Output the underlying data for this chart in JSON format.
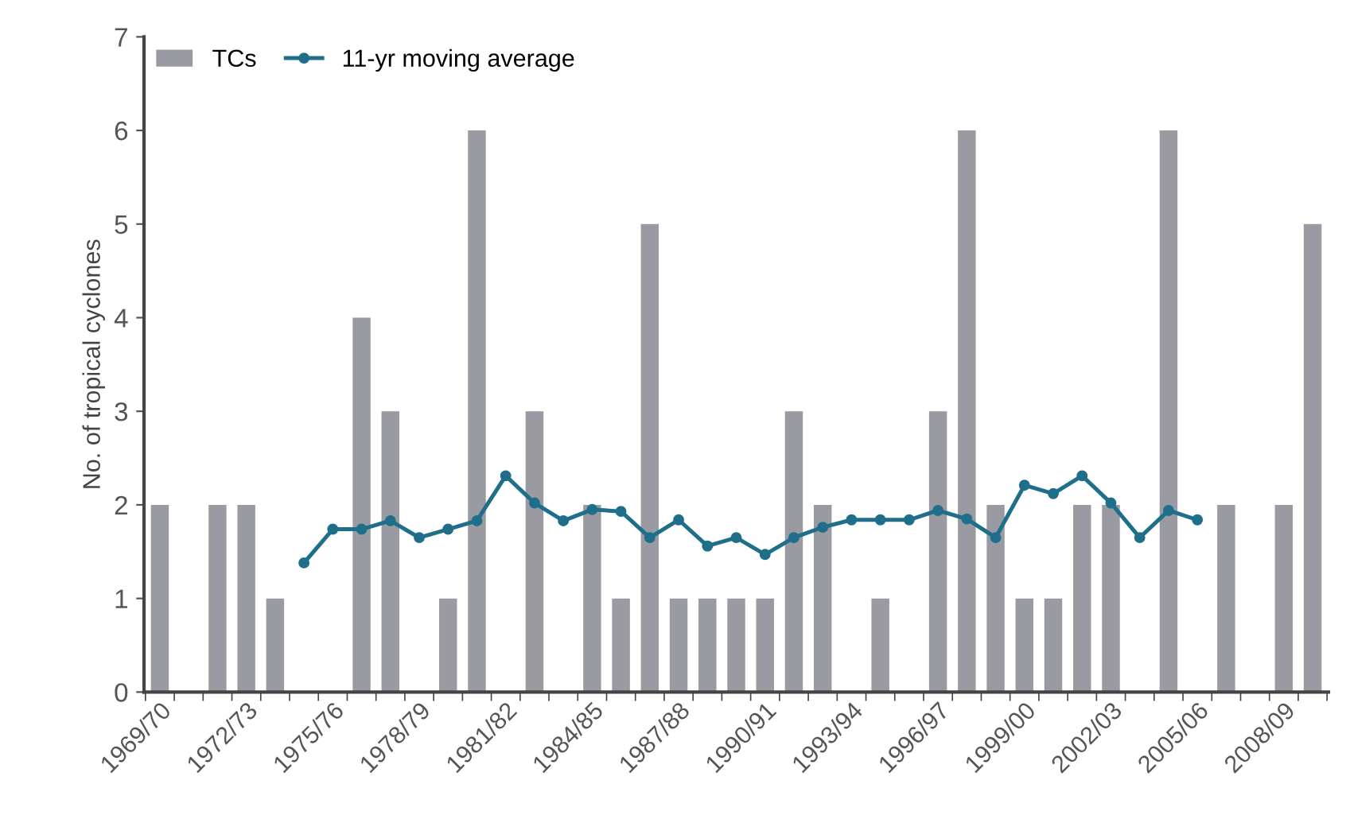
{
  "chart_data": {
    "type": "bar",
    "ylabel": "No. of tropical cyclones",
    "categories": [
      "1969/70",
      null,
      null,
      "1972/73",
      null,
      null,
      "1975/76",
      null,
      null,
      "1978/79",
      null,
      null,
      "1981/82",
      null,
      null,
      "1984/85",
      null,
      null,
      "1987/88",
      null,
      null,
      "1990/91",
      null,
      null,
      "1993/94",
      null,
      null,
      "1996/97",
      null,
      null,
      "1999/00",
      null,
      null,
      "2002/03",
      null,
      null,
      "2005/06",
      null,
      null,
      "2008/09",
      null
    ],
    "series": [
      {
        "name": "TCs",
        "color": "#9a9aa2",
        "values": [
          2,
          0,
          2,
          2,
          1,
          0,
          0,
          4,
          3,
          0,
          1,
          6,
          0,
          3,
          0,
          2,
          1,
          5,
          1,
          1,
          1,
          1,
          3,
          2,
          0,
          1,
          0,
          3,
          6,
          2,
          1,
          1,
          2,
          2,
          0,
          6,
          0,
          2,
          0,
          2,
          5
        ]
      },
      {
        "name": "11-yr moving average",
        "type": "line",
        "color": "#1f6f8b",
        "marker": "circle",
        "values": [
          null,
          null,
          null,
          null,
          null,
          1.38,
          1.74,
          1.74,
          1.83,
          1.65,
          1.74,
          1.83,
          2.31,
          2.02,
          1.83,
          1.95,
          1.93,
          1.65,
          1.84,
          1.56,
          1.65,
          1.47,
          1.65,
          1.76,
          1.84,
          1.84,
          1.84,
          1.94,
          1.85,
          1.65,
          2.21,
          2.12,
          2.31,
          2.02,
          1.65,
          1.94,
          1.84,
          null,
          null,
          null,
          null
        ]
      }
    ],
    "ylim": [
      0,
      7
    ],
    "yticks": [
      0,
      1,
      2,
      3,
      4,
      5,
      6,
      7
    ],
    "grid": false,
    "legend": "top left"
  }
}
